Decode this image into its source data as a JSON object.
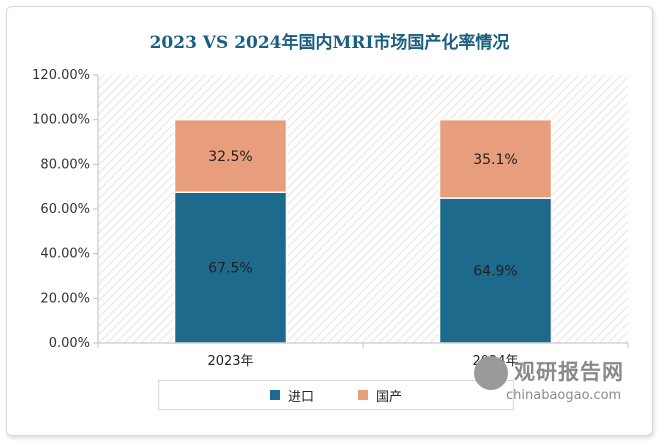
{
  "chart_data": {
    "type": "bar",
    "stacked": true,
    "title": "2023 VS 2024年国内MRI市场国产化率情况",
    "categories": [
      "2023年",
      "2024年"
    ],
    "series": [
      {
        "name": "进口",
        "values": [
          67.5,
          64.9
        ],
        "labels": [
          "67.5%",
          "64.9%"
        ],
        "color": "#1d6a8c"
      },
      {
        "name": "国产",
        "values": [
          32.5,
          35.1
        ],
        "labels": [
          "32.5%",
          "35.1%"
        ],
        "color": "#e89e7c"
      }
    ],
    "ylim": [
      0,
      120
    ],
    "yticks": [
      "0.00%",
      "20.00%",
      "40.00%",
      "60.00%",
      "80.00%",
      "100.00%",
      "120.00%"
    ],
    "grid": "diagonal-hatch background",
    "legend_position": "bottom"
  },
  "watermark": {
    "text": "观研报告网",
    "url": "chinabaogao.com"
  }
}
